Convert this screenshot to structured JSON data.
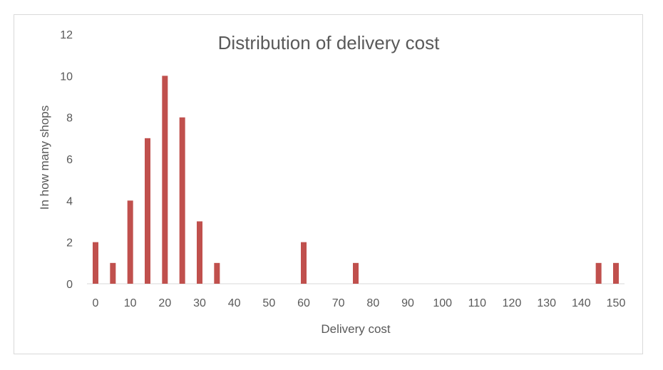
{
  "chart_data": {
    "type": "bar",
    "title": "Distribution of delivery cost",
    "xlabel": "Delivery cost",
    "ylabel": "In how many shops",
    "ylim": [
      0,
      12
    ],
    "yticks": [
      0,
      2,
      4,
      6,
      8,
      10,
      12
    ],
    "xlim": [
      0,
      150
    ],
    "xtick_labels": [
      "0",
      "10",
      "20",
      "30",
      "40",
      "50",
      "60",
      "70",
      "80",
      "90",
      "100",
      "110",
      "120",
      "130",
      "140",
      "150"
    ],
    "x": [
      0,
      5,
      10,
      15,
      20,
      25,
      30,
      35,
      60,
      75,
      145,
      150
    ],
    "values": [
      2,
      1,
      4,
      7,
      10,
      8,
      3,
      1,
      2,
      1,
      1,
      1
    ],
    "grid": false,
    "legend": "none",
    "bar_color": "#c0504d",
    "axis_color": "#d9d9d9",
    "text_color": "#595959"
  }
}
